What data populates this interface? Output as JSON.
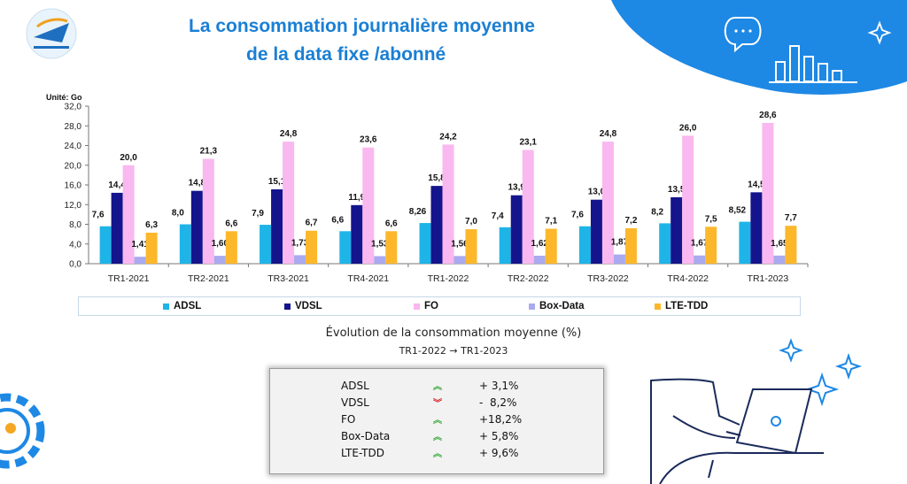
{
  "header": {
    "title_line1": "La consommation journalière moyenne",
    "title_line2": "de la data fixe /abonné"
  },
  "chart_data": {
    "type": "bar",
    "unit_label": "Unité: Go",
    "categories": [
      "TR1-2021",
      "TR2-2021",
      "TR3-2021",
      "TR4-2021",
      "TR1-2022",
      "TR2-2022",
      "TR3-2022",
      "TR4-2022",
      "TR1-2023"
    ],
    "ylim": [
      0,
      32
    ],
    "yticks": [
      "0,0",
      "4,0",
      "8,0",
      "12,0",
      "16,0",
      "20,0",
      "24,0",
      "28,0",
      "32,0"
    ],
    "grid": false,
    "legend_position": "bottom",
    "series": [
      {
        "name": "ADSL",
        "color": "#1fb4e8",
        "values": [
          7.6,
          8.0,
          7.9,
          6.6,
          8.26,
          7.4,
          7.6,
          8.2,
          8.52
        ],
        "labels": [
          "7,6",
          "8,0",
          "7,9",
          "6,6",
          "8,26",
          "7,4",
          "7,6",
          "8,2",
          "8,52"
        ]
      },
      {
        "name": "VDSL",
        "color": "#14148c",
        "values": [
          14.4,
          14.8,
          15.1,
          11.9,
          15.8,
          13.9,
          13.0,
          13.5,
          14.5
        ],
        "labels": [
          "14,4",
          "14,8",
          "15,1",
          "11,9",
          "15,8",
          "13,9",
          "13,0",
          "13,5",
          "14,5"
        ]
      },
      {
        "name": "FO",
        "color": "#f9b8ef",
        "values": [
          20.0,
          21.3,
          24.8,
          23.6,
          24.2,
          23.1,
          24.8,
          26.0,
          28.6
        ],
        "labels": [
          "20,0",
          "21,3",
          "24,8",
          "23,6",
          "24,2",
          "23,1",
          "24,8",
          "26,0",
          "28,6"
        ]
      },
      {
        "name": "Box-Data",
        "color": "#aaaaf0",
        "values": [
          1.41,
          1.6,
          1.73,
          1.53,
          1.56,
          1.62,
          1.87,
          1.67,
          1.65
        ],
        "labels": [
          "1,41",
          "1,60",
          "1,73",
          "1,53",
          "1,56",
          "1,62",
          "1,87",
          "1,67",
          "1,65"
        ]
      },
      {
        "name": "LTE-TDD",
        "color": "#fdb72a",
        "values": [
          6.3,
          6.6,
          6.7,
          6.6,
          7.0,
          7.1,
          7.2,
          7.5,
          7.7
        ],
        "labels": [
          "6,3",
          "6,6",
          "6,7",
          "6,6",
          "7,0",
          "7,1",
          "7,2",
          "7,5",
          "7,7"
        ]
      }
    ]
  },
  "evolution": {
    "title": "Évolution de la consommation moyenne (%)",
    "subtitle": "TR1-2022 → TR1-2023",
    "rows": [
      {
        "name": "ADSL",
        "direction": "up",
        "value": "+ 3,1%"
      },
      {
        "name": "VDSL",
        "direction": "down",
        "value": "-  8,2%"
      },
      {
        "name": "FO",
        "direction": "up",
        "value": "+18,2%"
      },
      {
        "name": "Box-Data",
        "direction": "up",
        "value": "+ 5,8%"
      },
      {
        "name": "LTE-TDD",
        "direction": "up",
        "value": "+ 9,6%"
      }
    ],
    "up_color": "#3caa3c",
    "down_color": "#d8232a"
  },
  "icons": [
    "logo-icon",
    "chat-bubble-icon",
    "bar-chart-icon",
    "sparkle-icon",
    "gear-icon",
    "person-laptop-illustration"
  ],
  "colors": {
    "title": "#1a7fd4",
    "blob": "#1e88e5"
  }
}
